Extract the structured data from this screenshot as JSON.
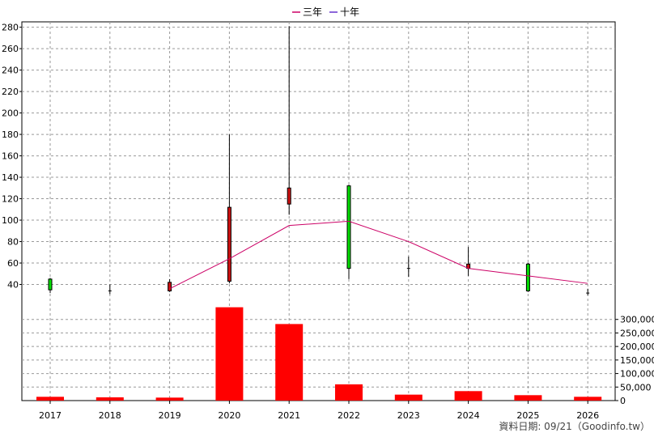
{
  "chart_data": {
    "type": "candlestick-with-volume",
    "legend": [
      {
        "label": "三年",
        "color": "#cc0066"
      },
      {
        "label": "十年",
        "color": "#6633cc"
      }
    ],
    "years": [
      "2017",
      "2018",
      "2019",
      "2020",
      "2021",
      "2022",
      "2023",
      "2024",
      "2025",
      "2026"
    ],
    "candles": [
      {
        "year": "2017",
        "open": 35,
        "close": 45,
        "high": 46,
        "low": 32
      },
      {
        "year": "2018",
        "open": 34,
        "close": 34,
        "high": 40,
        "low": 31
      },
      {
        "year": "2019",
        "open": 42,
        "close": 34,
        "high": 45,
        "low": 33
      },
      {
        "year": "2020",
        "open": 112,
        "close": 43,
        "high": 180,
        "low": 41
      },
      {
        "year": "2021",
        "open": 130,
        "close": 115,
        "high": 281,
        "low": 105
      },
      {
        "year": "2022",
        "open": 55,
        "close": 132,
        "high": 133,
        "low": 45
      },
      {
        "year": "2023",
        "open": 55,
        "close": 55,
        "high": 66,
        "low": 47
      },
      {
        "year": "2024",
        "open": 59,
        "close": 55,
        "high": 75,
        "low": 48
      },
      {
        "year": "2025",
        "open": 34,
        "close": 59,
        "high": 60,
        "low": 33
      },
      {
        "year": "2026",
        "open": 32,
        "close": 32,
        "high": 36,
        "low": 30
      }
    ],
    "three_year_avg": [
      {
        "year": "2019",
        "value": 36
      },
      {
        "year": "2020",
        "value": 64
      },
      {
        "year": "2021",
        "value": 95
      },
      {
        "year": "2022",
        "value": 99
      },
      {
        "year": "2023",
        "value": 80
      },
      {
        "year": "2024",
        "value": 55
      },
      {
        "year": "2025",
        "value": 48
      },
      {
        "year": "2026",
        "value": 41
      }
    ],
    "volume": [
      14000,
      12000,
      11000,
      345000,
      283000,
      60000,
      22000,
      35000,
      20000,
      14000
    ],
    "price_axis": {
      "min": 20,
      "max": 285,
      "ticks": [
        40,
        60,
        80,
        100,
        120,
        140,
        160,
        180,
        200,
        220,
        240,
        260,
        280
      ]
    },
    "volume_axis": {
      "min": 0,
      "max": 350000,
      "ticks": [
        0,
        50000,
        100000,
        150000,
        200000,
        250000,
        300000
      ],
      "tick_labels": [
        "0",
        "50,000",
        "100,000",
        "150,000",
        "200,000",
        "250,000",
        "300,000"
      ]
    },
    "colors": {
      "up": "#00dd00",
      "down": "#cc1111",
      "volume": "#ff0000",
      "grid": "#999999"
    },
    "footer": "資料日期: 09/21（Goodinfo.tw）"
  }
}
